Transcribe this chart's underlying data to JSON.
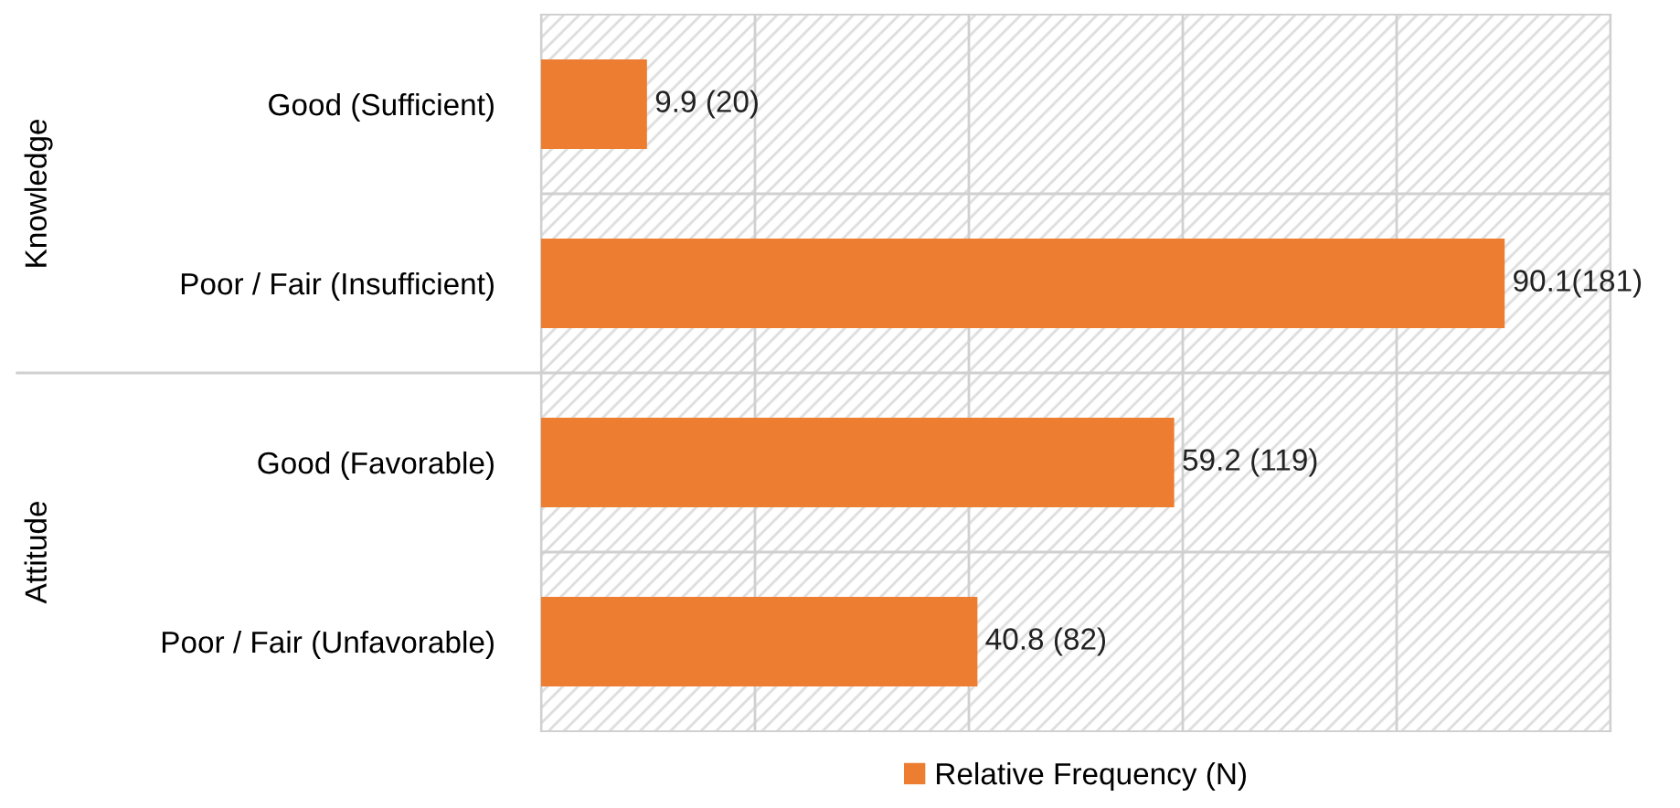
{
  "chart_data": {
    "type": "bar",
    "orientation": "horizontal",
    "categories": [
      "Good (Sufficient)",
      "Poor / Fair (Insufficient)",
      "Good (Favorable)",
      "Poor / Fair (Unfavorable)"
    ],
    "series": [
      {
        "name": "Relative Frequency (N)",
        "color": "#ed7d31",
        "values": [
          9.9,
          90.1,
          59.2,
          40.8
        ],
        "value_labels": [
          "9.9 (20)",
          "90.1(181)",
          "59.2 (119)",
          "40.8 (82)"
        ]
      }
    ],
    "annotations": [
      "Knowledge",
      "Attitude"
    ],
    "xlim": [
      0,
      100
    ],
    "xticks": [
      {
        "value": 0,
        "label": null
      },
      {
        "value": 20,
        "label": null
      },
      {
        "value": 40,
        "label": null
      },
      {
        "value": 60,
        "label": null
      },
      {
        "value": 80,
        "label": null
      },
      {
        "value": 100,
        "label": null
      }
    ],
    "tick_labels": "y",
    "grid": true,
    "legend": "bottom"
  }
}
